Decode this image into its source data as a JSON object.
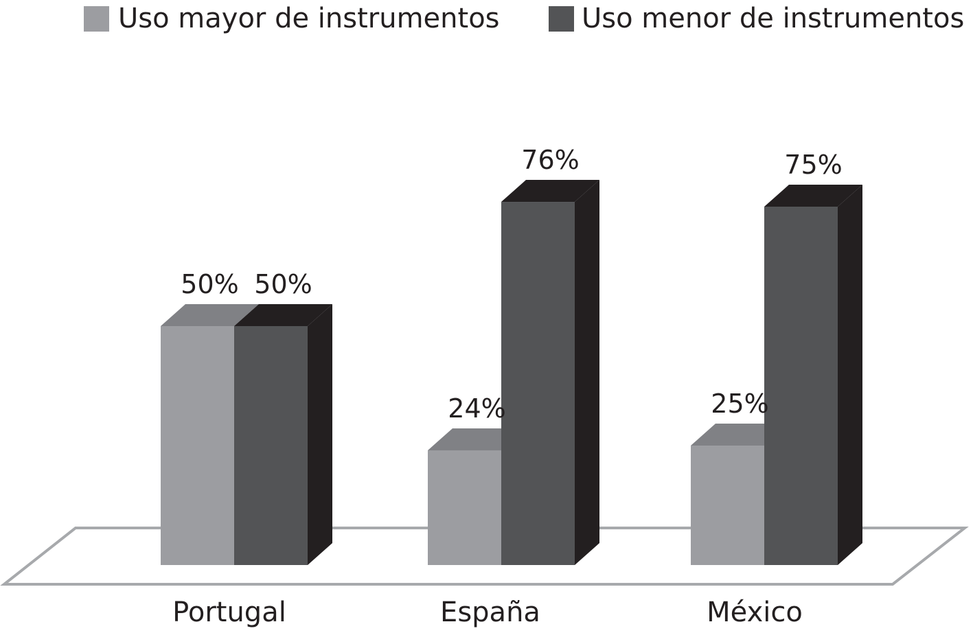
{
  "colors": {
    "mayor_front": "#9c9da1",
    "mayor_top": "#808185",
    "mayor_side": "#6d6e72",
    "menor_front": "#535456",
    "menor_top": "#231f20",
    "menor_side": "#231f20",
    "floor_stroke": "#a7a9ac",
    "text": "#231f20"
  },
  "chart_data": {
    "type": "bar",
    "categories": [
      "Portugal",
      "España",
      "México"
    ],
    "series": [
      {
        "name": "Uso mayor de instrumentos",
        "values": [
          50,
          24,
          25
        ],
        "labels": [
          "50%",
          "24%",
          "25%"
        ]
      },
      {
        "name": "Uso menor de instrumentos",
        "values": [
          50,
          76,
          75
        ],
        "labels": [
          "50%",
          "76%",
          "75%"
        ]
      }
    ],
    "unit": "%",
    "ylim": [
      0,
      100
    ],
    "grid": false,
    "legend_position": "top",
    "three_d": true
  }
}
